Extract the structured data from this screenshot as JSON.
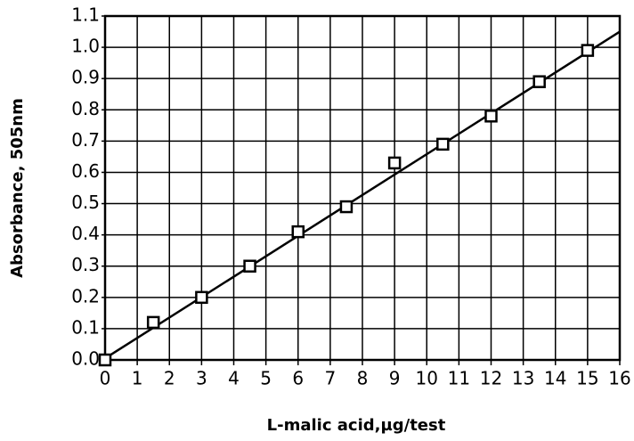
{
  "chart_data": {
    "type": "scatter",
    "x_label": "L-malic acid,µg/test",
    "y_label": "Absorbance, 505nm",
    "x": [
      0,
      1.5,
      3,
      4.5,
      6,
      7.5,
      9,
      10.5,
      12,
      13.5,
      15
    ],
    "values": [
      0,
      0.12,
      0.2,
      0.3,
      0.41,
      0.49,
      0.63,
      0.69,
      0.78,
      0.89,
      0.99
    ],
    "color": "#000000",
    "marker": "square",
    "fit_line": {
      "x": [
        0,
        16
      ],
      "y": [
        0.005,
        1.05
      ]
    },
    "xlim": [
      0,
      16
    ],
    "ylim": [
      0,
      1.1
    ],
    "xticks": [
      0,
      1,
      2,
      3,
      4,
      5,
      6,
      7,
      8,
      9,
      10,
      11,
      12,
      13,
      14,
      15,
      16
    ],
    "yticks": [
      {
        "value": 0,
        "label": "0.0"
      },
      0.1,
      0.2,
      0.3,
      0.4,
      0.5,
      0.6,
      0.7,
      0.8,
      0.9,
      {
        "value": 1,
        "label": "1.0"
      },
      1.1
    ],
    "grid": true
  }
}
